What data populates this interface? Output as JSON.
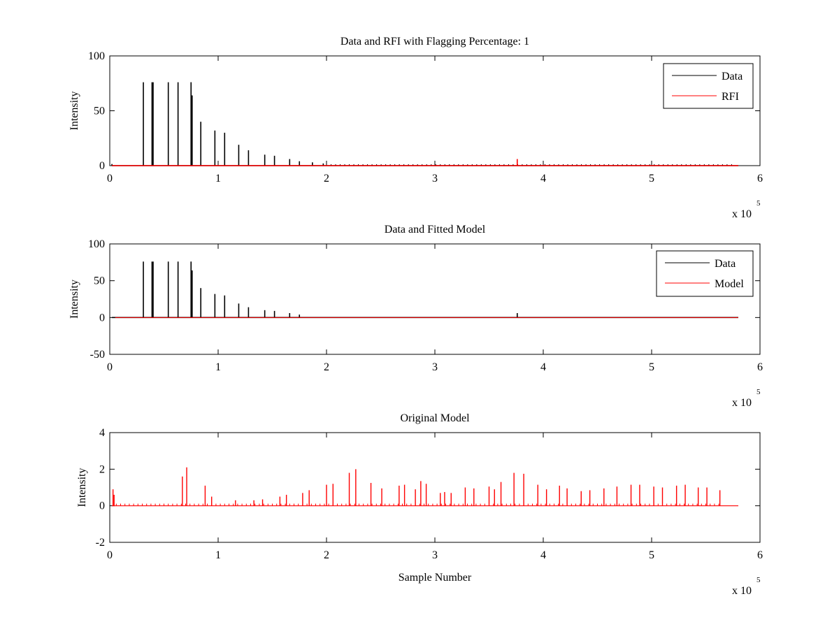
{
  "colors": {
    "data": "#000000",
    "model": "#ff0000",
    "axes": "#000000",
    "background": "#ffffff"
  },
  "chart_data": [
    {
      "type": "line",
      "title": "Data and RFI with Flagging Percentage: 1",
      "xlabel": "",
      "ylabel": "Intensity",
      "xlim": [
        0,
        600000
      ],
      "ylim": [
        0,
        100
      ],
      "xticks": [
        0,
        1,
        2,
        3,
        4,
        5,
        6
      ],
      "xtick_labels": [
        "0",
        "1",
        "2",
        "3",
        "4",
        "5",
        "6"
      ],
      "yticks": [
        0,
        50,
        100
      ],
      "ytick_labels": [
        "0",
        "50",
        "100"
      ],
      "xexponent": {
        "base": "x 10",
        "power": "5"
      },
      "grid": false,
      "legend": "top-right",
      "series": [
        {
          "name": "Data",
          "color": "#000000",
          "x": [
            2000,
            31000,
            39000,
            40000,
            54000,
            63000,
            75000,
            76000,
            84000,
            97000,
            106000,
            119000,
            128000,
            143000,
            152000,
            166000,
            175000,
            187000,
            197000
          ],
          "values": [
            1.5,
            76,
            76,
            76,
            76,
            76,
            76,
            64,
            40,
            32,
            30,
            19,
            14,
            10,
            9,
            6,
            4,
            3,
            2
          ]
        },
        {
          "name": "RFI",
          "color": "#ff0000",
          "x": [
            376000
          ],
          "values": [
            6
          ]
        }
      ]
    },
    {
      "type": "line",
      "title": "Data and Fitted Model",
      "xlabel": "",
      "ylabel": "Intensity",
      "xlim": [
        0,
        600000
      ],
      "ylim": [
        -50,
        100
      ],
      "xticks": [
        0,
        1,
        2,
        3,
        4,
        5,
        6
      ],
      "xtick_labels": [
        "0",
        "1",
        "2",
        "3",
        "4",
        "5",
        "6"
      ],
      "yticks": [
        -50,
        0,
        50,
        100
      ],
      "ytick_labels": [
        "-50",
        "0",
        "50",
        "100"
      ],
      "xexponent": {
        "base": "x 10",
        "power": "5"
      },
      "grid": false,
      "legend": "top-right",
      "series": [
        {
          "name": "Data",
          "color": "#000000",
          "x": [
            31000,
            39000,
            40000,
            54000,
            63000,
            75000,
            76000,
            84000,
            97000,
            106000,
            119000,
            128000,
            143000,
            152000,
            166000,
            175000,
            376000
          ],
          "values": [
            76,
            76,
            76,
            76,
            76,
            76,
            64,
            40,
            32,
            30,
            19,
            14,
            10,
            9,
            6,
            4,
            6
          ]
        },
        {
          "name": "Model",
          "color": "#ff0000",
          "x": [
            5000,
            580000
          ],
          "values": [
            0,
            0
          ]
        }
      ]
    },
    {
      "type": "line",
      "title": "Original Model",
      "xlabel": "Sample Number",
      "ylabel": "Intensity",
      "xlim": [
        0,
        600000
      ],
      "ylim": [
        -2,
        4
      ],
      "xticks": [
        0,
        1,
        2,
        3,
        4,
        5,
        6
      ],
      "xtick_labels": [
        "0",
        "1",
        "2",
        "3",
        "4",
        "5",
        "6"
      ],
      "yticks": [
        -2,
        0,
        2,
        4
      ],
      "ytick_labels": [
        "-2",
        "0",
        "2",
        "4"
      ],
      "xexponent": {
        "base": "x 10",
        "power": "5"
      },
      "grid": false,
      "legend": "none",
      "series": [
        {
          "color": "#ff0000",
          "x": [
            3000,
            4000,
            67000,
            71000,
            88000,
            94000,
            116000,
            133000,
            141000,
            157000,
            163000,
            178000,
            184000,
            200000,
            206000,
            221000,
            227000,
            241000,
            251000,
            267000,
            272000,
            282000,
            287000,
            292000,
            305000,
            309000,
            315000,
            328000,
            336000,
            350000,
            355000,
            361000,
            373000,
            382000,
            395000,
            403000,
            415000,
            422000,
            435000,
            443000,
            456000,
            468000,
            481000,
            489000,
            502000,
            510000,
            523000,
            531000,
            543000,
            551000,
            563000
          ],
          "values": [
            0.9,
            0.6,
            1.6,
            2.1,
            1.1,
            0.5,
            0.3,
            0.3,
            0.35,
            0.5,
            0.6,
            0.7,
            0.85,
            1.15,
            1.2,
            1.8,
            2.0,
            1.25,
            0.95,
            1.1,
            1.15,
            0.9,
            1.35,
            1.2,
            0.7,
            0.75,
            0.7,
            1.0,
            0.95,
            1.05,
            0.9,
            1.3,
            1.8,
            1.75,
            1.15,
            0.9,
            1.1,
            0.95,
            0.8,
            0.85,
            0.95,
            1.05,
            1.15,
            1.15,
            1.05,
            1.0,
            1.1,
            1.15,
            1.0,
            1.0,
            0.85
          ]
        }
      ]
    }
  ]
}
